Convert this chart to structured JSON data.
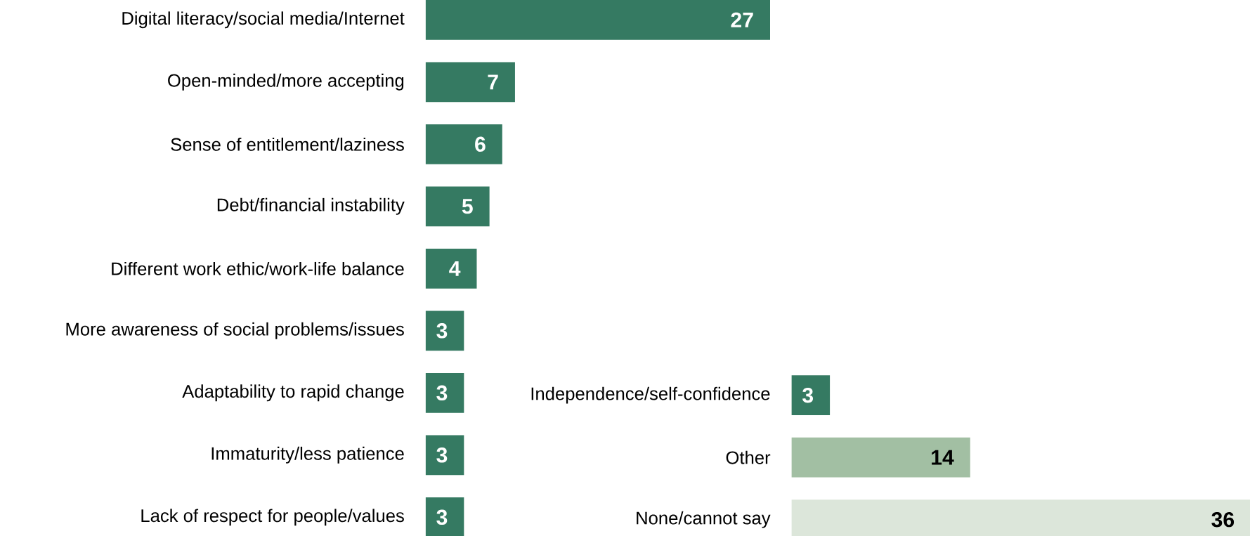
{
  "chart_data": [
    {
      "type": "bar",
      "orientation": "horizontal",
      "categories": [
        "Digital literacy/social media/Internet",
        "Open-minded/more accepting",
        "Sense of entitlement/laziness",
        "Debt/financial instability",
        "Different work ethic/work-life balance",
        "More awareness of social problems/issues",
        "Adaptability to rapid change",
        "Immaturity/less patience",
        "Lack of respect for people/values"
      ],
      "values": [
        27,
        7,
        6,
        5,
        4,
        3,
        3,
        3,
        3
      ],
      "colors": [
        "#357a62",
        "#357a62",
        "#357a62",
        "#357a62",
        "#357a62",
        "#357a62",
        "#357a62",
        "#357a62",
        "#357a62"
      ],
      "data_labels": true,
      "tick_labels": "y"
    },
    {
      "type": "bar",
      "orientation": "horizontal",
      "categories": [
        "Independence/self-confidence",
        "Other",
        "None/cannot say"
      ],
      "values": [
        3,
        14,
        36
      ],
      "colors": [
        "#357a62",
        "#a2bfa3",
        "#dce6da"
      ],
      "data_labels": true,
      "tick_labels": "y"
    }
  ]
}
